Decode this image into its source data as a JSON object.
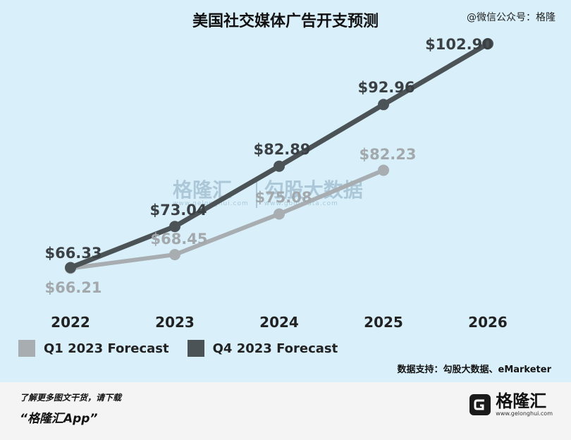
{
  "header": {
    "title": "美国社交媒体广告开支预测",
    "wechat": "@微信公众号：格隆"
  },
  "chart_data": {
    "type": "line",
    "title": "美国社交媒体广告开支预测",
    "categories": [
      "2022",
      "2023",
      "2024",
      "2025",
      "2026"
    ],
    "series": [
      {
        "name": "Q1 2023 Forecast",
        "color": "#a7adb0",
        "values": [
          66.21,
          68.45,
          75.08,
          82.23,
          null
        ],
        "labels": [
          "$66.21",
          "$68.45",
          "$75.08",
          "$82.23",
          ""
        ]
      },
      {
        "name": "Q4 2023 Forecast",
        "color": "#4c5357",
        "values": [
          66.33,
          73.04,
          82.89,
          92.96,
          102.9
        ],
        "labels": [
          "$66.33",
          "$73.04",
          "$82.89",
          "$92.96",
          "$102.90"
        ]
      }
    ],
    "ylim": [
      60,
      106
    ],
    "grid": false,
    "legend": "bottom-left"
  },
  "watermark": {
    "left_name": "格隆汇",
    "left_url": "www.gelonghui.com",
    "right_name": "勾股大数据",
    "right_url": "www.gogudata.com"
  },
  "footer": {
    "source": "数据支持：勾股大数据、eMarketer",
    "more": "了解更多图文干货，请下载",
    "app": "“格隆汇App”",
    "brand_name": "格隆汇",
    "brand_url": "www.gelonghui.com"
  }
}
